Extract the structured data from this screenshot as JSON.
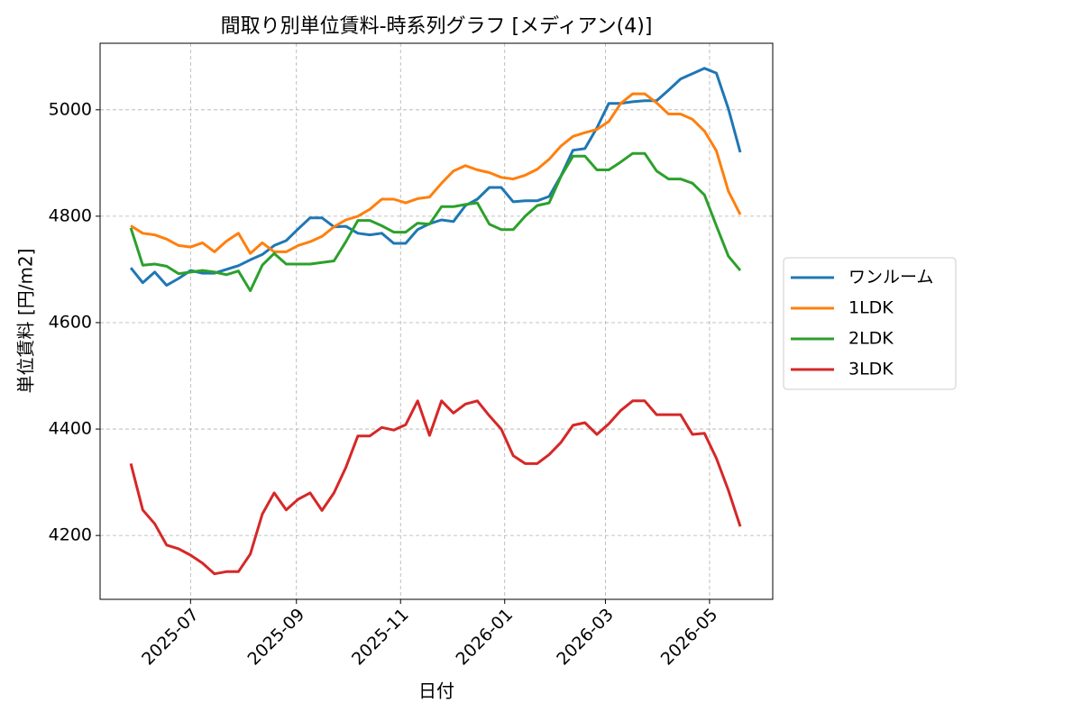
{
  "chart_data": {
    "type": "line",
    "title": "間取り別単位賃料-時系列グラフ [メディアン(4)]",
    "x_label": "日付",
    "y_label": "単位賃料 [円/m2]",
    "x": [
      "2025-05-27",
      "2025-06-03",
      "2025-06-10",
      "2025-06-17",
      "2025-06-24",
      "2025-07-01",
      "2025-07-08",
      "2025-07-15",
      "2025-07-22",
      "2025-07-29",
      "2025-08-05",
      "2025-08-12",
      "2025-08-19",
      "2025-08-26",
      "2025-09-02",
      "2025-09-09",
      "2025-09-16",
      "2025-09-23",
      "2025-09-30",
      "2025-10-07",
      "2025-10-14",
      "2025-10-21",
      "2025-10-28",
      "2025-11-04",
      "2025-11-11",
      "2025-11-18",
      "2025-11-25",
      "2025-12-02",
      "2025-12-09",
      "2025-12-16",
      "2025-12-23",
      "2025-12-30",
      "2026-01-06",
      "2026-01-13",
      "2026-01-20",
      "2026-01-27",
      "2026-02-03",
      "2026-02-10",
      "2026-02-17",
      "2026-02-24",
      "2026-03-03",
      "2026-03-10",
      "2026-03-17",
      "2026-03-24",
      "2026-03-31",
      "2026-04-07",
      "2026-04-14",
      "2026-04-21",
      "2026-04-28",
      "2026-05-05",
      "2026-05-12",
      "2026-05-19"
    ],
    "series": [
      {
        "name": "ワンルーム",
        "color": "#1f77b4",
        "values": [
          4703,
          4675,
          4695,
          4670,
          4683,
          4698,
          4693,
          4693,
          4700,
          4707,
          4718,
          4728,
          4745,
          4754,
          4776,
          4797,
          4797,
          4780,
          4781,
          4768,
          4765,
          4768,
          4749,
          4749,
          4775,
          4786,
          4793,
          4790,
          4820,
          4832,
          4854,
          4854,
          4827,
          4829,
          4829,
          4837,
          4876,
          4924,
          4927,
          4966,
          5012,
          5012,
          5015,
          5017,
          5017,
          5037,
          5058,
          5068,
          5078,
          5069,
          5002,
          4920
        ]
      },
      {
        "name": "1LDK",
        "color": "#ff7f0e",
        "values": [
          4782,
          4768,
          4765,
          4757,
          4745,
          4742,
          4750,
          4733,
          4753,
          4768,
          4730,
          4750,
          4733,
          4733,
          4745,
          4752,
          4762,
          4780,
          4793,
          4800,
          4813,
          4832,
          4832,
          4825,
          4833,
          4836,
          4862,
          4885,
          4895,
          4887,
          4882,
          4873,
          4870,
          4877,
          4888,
          4907,
          4932,
          4950,
          4957,
          4963,
          4978,
          5012,
          5030,
          5030,
          5013,
          4992,
          4992,
          4982,
          4960,
          4923,
          4847,
          4803
        ]
      },
      {
        "name": "2LDK",
        "color": "#2ca02c",
        "values": [
          4778,
          4708,
          4710,
          4706,
          4692,
          4695,
          4698,
          4695,
          4690,
          4697,
          4660,
          4708,
          4730,
          4710,
          4710,
          4710,
          4713,
          4716,
          4752,
          4792,
          4792,
          4782,
          4770,
          4770,
          4787,
          4785,
          4818,
          4818,
          4822,
          4825,
          4785,
          4775,
          4775,
          4800,
          4820,
          4825,
          4875,
          4913,
          4913,
          4887,
          4887,
          4902,
          4918,
          4918,
          4885,
          4870,
          4870,
          4862,
          4840,
          4782,
          4725,
          4698
        ]
      },
      {
        "name": "3LDK",
        "color": "#d62728",
        "values": [
          4335,
          4248,
          4222,
          4182,
          4175,
          4163,
          4148,
          4128,
          4132,
          4132,
          4165,
          4240,
          4280,
          4248,
          4268,
          4280,
          4247,
          4280,
          4328,
          4387,
          4387,
          4403,
          4398,
          4408,
          4453,
          4388,
          4453,
          4430,
          4447,
          4453,
          4425,
          4400,
          4350,
          4335,
          4335,
          4352,
          4375,
          4407,
          4412,
          4390,
          4410,
          4435,
          4453,
          4453,
          4427,
          4427,
          4427,
          4390,
          4392,
          4345,
          4285,
          4217
        ]
      }
    ],
    "xlim": [
      "2025-05-09",
      "2026-06-07"
    ],
    "xticks": [
      "2025-07",
      "2025-09",
      "2025-11",
      "2026-01",
      "2026-03",
      "2026-05"
    ],
    "ylim": [
      4080,
      5125
    ],
    "yticks": [
      4200,
      4400,
      4600,
      4800,
      5000
    ],
    "grid": true,
    "legend": "outside right"
  }
}
